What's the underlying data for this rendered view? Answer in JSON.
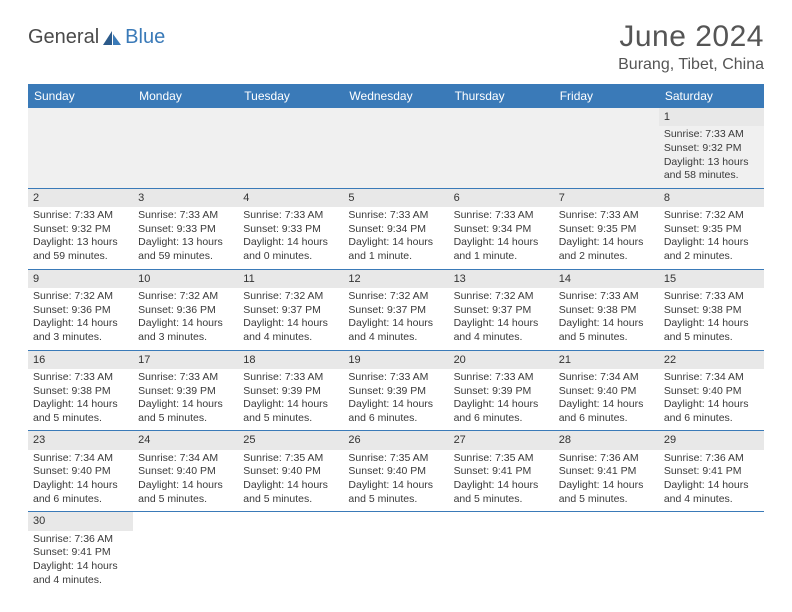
{
  "logo": {
    "part1": "General",
    "part2": "Blue"
  },
  "title": "June 2024",
  "location": "Burang, Tibet, China",
  "colors": {
    "header_bg": "#3a7ab8",
    "row_border": "#3a7ab8",
    "daynum_bg": "#e8e8e8"
  },
  "weekdays": [
    "Sunday",
    "Monday",
    "Tuesday",
    "Wednesday",
    "Thursday",
    "Friday",
    "Saturday"
  ],
  "weeks": [
    [
      null,
      null,
      null,
      null,
      null,
      null,
      {
        "n": "1",
        "sr": "Sunrise: 7:33 AM",
        "ss": "Sunset: 9:32 PM",
        "d1": "Daylight: 13 hours",
        "d2": "and 58 minutes."
      }
    ],
    [
      {
        "n": "2",
        "sr": "Sunrise: 7:33 AM",
        "ss": "Sunset: 9:32 PM",
        "d1": "Daylight: 13 hours",
        "d2": "and 59 minutes."
      },
      {
        "n": "3",
        "sr": "Sunrise: 7:33 AM",
        "ss": "Sunset: 9:33 PM",
        "d1": "Daylight: 13 hours",
        "d2": "and 59 minutes."
      },
      {
        "n": "4",
        "sr": "Sunrise: 7:33 AM",
        "ss": "Sunset: 9:33 PM",
        "d1": "Daylight: 14 hours",
        "d2": "and 0 minutes."
      },
      {
        "n": "5",
        "sr": "Sunrise: 7:33 AM",
        "ss": "Sunset: 9:34 PM",
        "d1": "Daylight: 14 hours",
        "d2": "and 1 minute."
      },
      {
        "n": "6",
        "sr": "Sunrise: 7:33 AM",
        "ss": "Sunset: 9:34 PM",
        "d1": "Daylight: 14 hours",
        "d2": "and 1 minute."
      },
      {
        "n": "7",
        "sr": "Sunrise: 7:33 AM",
        "ss": "Sunset: 9:35 PM",
        "d1": "Daylight: 14 hours",
        "d2": "and 2 minutes."
      },
      {
        "n": "8",
        "sr": "Sunrise: 7:32 AM",
        "ss": "Sunset: 9:35 PM",
        "d1": "Daylight: 14 hours",
        "d2": "and 2 minutes."
      }
    ],
    [
      {
        "n": "9",
        "sr": "Sunrise: 7:32 AM",
        "ss": "Sunset: 9:36 PM",
        "d1": "Daylight: 14 hours",
        "d2": "and 3 minutes."
      },
      {
        "n": "10",
        "sr": "Sunrise: 7:32 AM",
        "ss": "Sunset: 9:36 PM",
        "d1": "Daylight: 14 hours",
        "d2": "and 3 minutes."
      },
      {
        "n": "11",
        "sr": "Sunrise: 7:32 AM",
        "ss": "Sunset: 9:37 PM",
        "d1": "Daylight: 14 hours",
        "d2": "and 4 minutes."
      },
      {
        "n": "12",
        "sr": "Sunrise: 7:32 AM",
        "ss": "Sunset: 9:37 PM",
        "d1": "Daylight: 14 hours",
        "d2": "and 4 minutes."
      },
      {
        "n": "13",
        "sr": "Sunrise: 7:32 AM",
        "ss": "Sunset: 9:37 PM",
        "d1": "Daylight: 14 hours",
        "d2": "and 4 minutes."
      },
      {
        "n": "14",
        "sr": "Sunrise: 7:33 AM",
        "ss": "Sunset: 9:38 PM",
        "d1": "Daylight: 14 hours",
        "d2": "and 5 minutes."
      },
      {
        "n": "15",
        "sr": "Sunrise: 7:33 AM",
        "ss": "Sunset: 9:38 PM",
        "d1": "Daylight: 14 hours",
        "d2": "and 5 minutes."
      }
    ],
    [
      {
        "n": "16",
        "sr": "Sunrise: 7:33 AM",
        "ss": "Sunset: 9:38 PM",
        "d1": "Daylight: 14 hours",
        "d2": "and 5 minutes."
      },
      {
        "n": "17",
        "sr": "Sunrise: 7:33 AM",
        "ss": "Sunset: 9:39 PM",
        "d1": "Daylight: 14 hours",
        "d2": "and 5 minutes."
      },
      {
        "n": "18",
        "sr": "Sunrise: 7:33 AM",
        "ss": "Sunset: 9:39 PM",
        "d1": "Daylight: 14 hours",
        "d2": "and 5 minutes."
      },
      {
        "n": "19",
        "sr": "Sunrise: 7:33 AM",
        "ss": "Sunset: 9:39 PM",
        "d1": "Daylight: 14 hours",
        "d2": "and 6 minutes."
      },
      {
        "n": "20",
        "sr": "Sunrise: 7:33 AM",
        "ss": "Sunset: 9:39 PM",
        "d1": "Daylight: 14 hours",
        "d2": "and 6 minutes."
      },
      {
        "n": "21",
        "sr": "Sunrise: 7:34 AM",
        "ss": "Sunset: 9:40 PM",
        "d1": "Daylight: 14 hours",
        "d2": "and 6 minutes."
      },
      {
        "n": "22",
        "sr": "Sunrise: 7:34 AM",
        "ss": "Sunset: 9:40 PM",
        "d1": "Daylight: 14 hours",
        "d2": "and 6 minutes."
      }
    ],
    [
      {
        "n": "23",
        "sr": "Sunrise: 7:34 AM",
        "ss": "Sunset: 9:40 PM",
        "d1": "Daylight: 14 hours",
        "d2": "and 6 minutes."
      },
      {
        "n": "24",
        "sr": "Sunrise: 7:34 AM",
        "ss": "Sunset: 9:40 PM",
        "d1": "Daylight: 14 hours",
        "d2": "and 5 minutes."
      },
      {
        "n": "25",
        "sr": "Sunrise: 7:35 AM",
        "ss": "Sunset: 9:40 PM",
        "d1": "Daylight: 14 hours",
        "d2": "and 5 minutes."
      },
      {
        "n": "26",
        "sr": "Sunrise: 7:35 AM",
        "ss": "Sunset: 9:40 PM",
        "d1": "Daylight: 14 hours",
        "d2": "and 5 minutes."
      },
      {
        "n": "27",
        "sr": "Sunrise: 7:35 AM",
        "ss": "Sunset: 9:41 PM",
        "d1": "Daylight: 14 hours",
        "d2": "and 5 minutes."
      },
      {
        "n": "28",
        "sr": "Sunrise: 7:36 AM",
        "ss": "Sunset: 9:41 PM",
        "d1": "Daylight: 14 hours",
        "d2": "and 5 minutes."
      },
      {
        "n": "29",
        "sr": "Sunrise: 7:36 AM",
        "ss": "Sunset: 9:41 PM",
        "d1": "Daylight: 14 hours",
        "d2": "and 4 minutes."
      }
    ],
    [
      {
        "n": "30",
        "sr": "Sunrise: 7:36 AM",
        "ss": "Sunset: 9:41 PM",
        "d1": "Daylight: 14 hours",
        "d2": "and 4 minutes."
      },
      null,
      null,
      null,
      null,
      null,
      null
    ]
  ]
}
